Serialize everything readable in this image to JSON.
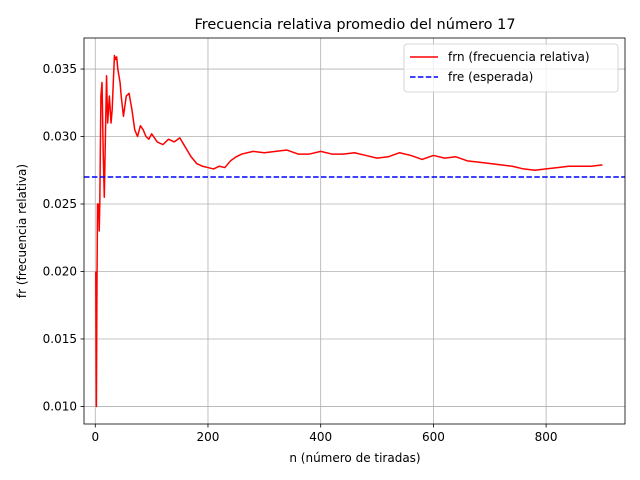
{
  "chart_data": {
    "type": "line",
    "title": "Frecuencia relativa promedio del número 17",
    "xlabel": "n (número de tiradas)",
    "ylabel": "fr (frecuencia relativa)",
    "xlim": [
      -20,
      940
    ],
    "ylim": [
      0.0087,
      0.0373
    ],
    "x_ticks": [
      0,
      200,
      400,
      600,
      800
    ],
    "x_tick_labels": [
      "0",
      "200",
      "400",
      "600",
      "800"
    ],
    "y_ticks": [
      0.01,
      0.015,
      0.02,
      0.025,
      0.03,
      0.035
    ],
    "y_tick_labels": [
      "0.010",
      "0.015",
      "0.020",
      "0.025",
      "0.030",
      "0.035"
    ],
    "grid": true,
    "legend_position": "upper right",
    "series": [
      {
        "name": "frn (frecuencia relativa)",
        "color": "#ff0000",
        "style": "solid",
        "x": [
          1,
          2,
          3,
          4,
          5,
          6,
          7,
          8,
          10,
          12,
          14,
          16,
          18,
          20,
          22,
          25,
          28,
          30,
          32,
          34,
          36,
          38,
          40,
          42,
          44,
          46,
          50,
          55,
          60,
          65,
          70,
          75,
          80,
          85,
          90,
          95,
          100,
          110,
          120,
          130,
          140,
          150,
          160,
          170,
          180,
          190,
          200,
          210,
          220,
          230,
          240,
          250,
          260,
          280,
          300,
          320,
          340,
          360,
          380,
          400,
          420,
          440,
          460,
          480,
          500,
          520,
          540,
          560,
          580,
          600,
          620,
          640,
          660,
          680,
          700,
          720,
          740,
          760,
          780,
          800,
          820,
          840,
          860,
          880,
          900
        ],
        "y": [
          0.02,
          0.01,
          0.019,
          0.025,
          0.024,
          0.025,
          0.023,
          0.025,
          0.033,
          0.034,
          0.029,
          0.0255,
          0.03,
          0.0345,
          0.031,
          0.033,
          0.031,
          0.032,
          0.034,
          0.036,
          0.0357,
          0.0359,
          0.035,
          0.0345,
          0.034,
          0.033,
          0.0315,
          0.033,
          0.0332,
          0.032,
          0.0305,
          0.03,
          0.0308,
          0.0305,
          0.03,
          0.0298,
          0.0302,
          0.0296,
          0.0294,
          0.0298,
          0.0296,
          0.0299,
          0.0292,
          0.0285,
          0.028,
          0.0278,
          0.0277,
          0.0276,
          0.0278,
          0.0277,
          0.0282,
          0.0285,
          0.0287,
          0.0289,
          0.0288,
          0.0289,
          0.029,
          0.0287,
          0.0287,
          0.0289,
          0.0287,
          0.0287,
          0.0288,
          0.0286,
          0.0284,
          0.0285,
          0.0288,
          0.0286,
          0.0283,
          0.0286,
          0.0284,
          0.0285,
          0.0282,
          0.0281,
          0.028,
          0.0279,
          0.0278,
          0.0276,
          0.0275,
          0.0276,
          0.0277,
          0.0278,
          0.0278,
          0.0278,
          0.0279
        ]
      },
      {
        "name": "fre (esperada)",
        "color": "#0000ff",
        "style": "dashed",
        "hline": 0.027
      }
    ]
  }
}
